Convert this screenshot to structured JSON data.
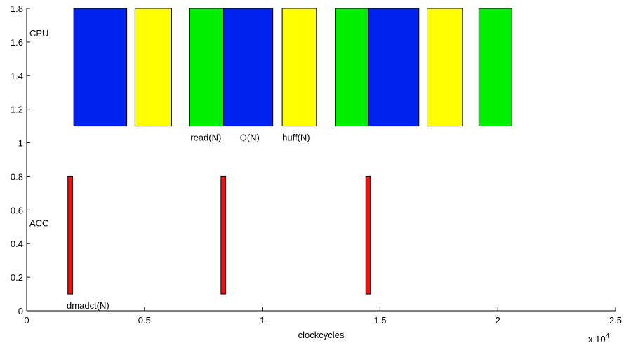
{
  "chart_data": {
    "type": "bar",
    "subtype": "gantt",
    "xlabel": "clockcycles",
    "x_multiplier_label": "x 10",
    "x_multiplier_exponent": "4",
    "xlim": [
      0,
      25000
    ],
    "ylim": [
      0,
      1.8
    ],
    "x_ticks": [
      {
        "value": 0,
        "label": "0"
      },
      {
        "value": 5000,
        "label": "0.5"
      },
      {
        "value": 10000,
        "label": "1"
      },
      {
        "value": 15000,
        "label": "1.5"
      },
      {
        "value": 20000,
        "label": "2"
      },
      {
        "value": 25000,
        "label": "2.5"
      }
    ],
    "y_ticks": [
      {
        "value": 0,
        "label": "0"
      },
      {
        "value": 0.2,
        "label": "0.2"
      },
      {
        "value": 0.4,
        "label": "0.4"
      },
      {
        "value": 0.6,
        "label": "0.6"
      },
      {
        "value": 0.8,
        "label": "0.8"
      },
      {
        "value": 1.0,
        "label": "1"
      },
      {
        "value": 1.2,
        "label": "1.2"
      },
      {
        "value": 1.4,
        "label": "1.4"
      },
      {
        "value": 1.6,
        "label": "1.6"
      },
      {
        "value": 1.8,
        "label": "1.8"
      }
    ],
    "grid": false,
    "lanes": [
      {
        "label": "CPU",
        "y": 1.65,
        "bottom": 1.1,
        "top": 1.8
      },
      {
        "label": "ACC",
        "y": 0.52,
        "bottom": 0.1,
        "top": 0.8
      }
    ],
    "colors": {
      "Q": "#0022ee",
      "huff": "#ffff00",
      "read": "#00ee00",
      "dmadct": "#ee1111"
    },
    "tasks": [
      {
        "lane": "CPU",
        "task": "Q",
        "start": 2000,
        "end": 4250
      },
      {
        "lane": "CPU",
        "task": "huff",
        "start": 4600,
        "end": 6150
      },
      {
        "lane": "CPU",
        "task": "read",
        "start": 6900,
        "end": 8350
      },
      {
        "lane": "CPU",
        "task": "Q",
        "start": 8350,
        "end": 10450
      },
      {
        "lane": "CPU",
        "task": "huff",
        "start": 10850,
        "end": 12300
      },
      {
        "lane": "CPU",
        "task": "read",
        "start": 13100,
        "end": 14500
      },
      {
        "lane": "CPU",
        "task": "Q",
        "start": 14500,
        "end": 16650
      },
      {
        "lane": "CPU",
        "task": "huff",
        "start": 17000,
        "end": 18500
      },
      {
        "lane": "CPU",
        "task": "read",
        "start": 19200,
        "end": 20600
      },
      {
        "lane": "ACC",
        "task": "dmadct",
        "start": 1750,
        "end": 1950
      },
      {
        "lane": "ACC",
        "task": "dmadct",
        "start": 8250,
        "end": 8450
      },
      {
        "lane": "ACC",
        "task": "dmadct",
        "start": 14400,
        "end": 14600
      }
    ],
    "annotations": [
      {
        "text": "read(N)",
        "x": 6950,
        "y": 1.03
      },
      {
        "text": "Q(N)",
        "x": 9050,
        "y": 1.03
      },
      {
        "text": "huff(N)",
        "x": 10850,
        "y": 1.03
      },
      {
        "text": "dmadct(N)",
        "x": 1700,
        "y": 0.03
      }
    ]
  }
}
